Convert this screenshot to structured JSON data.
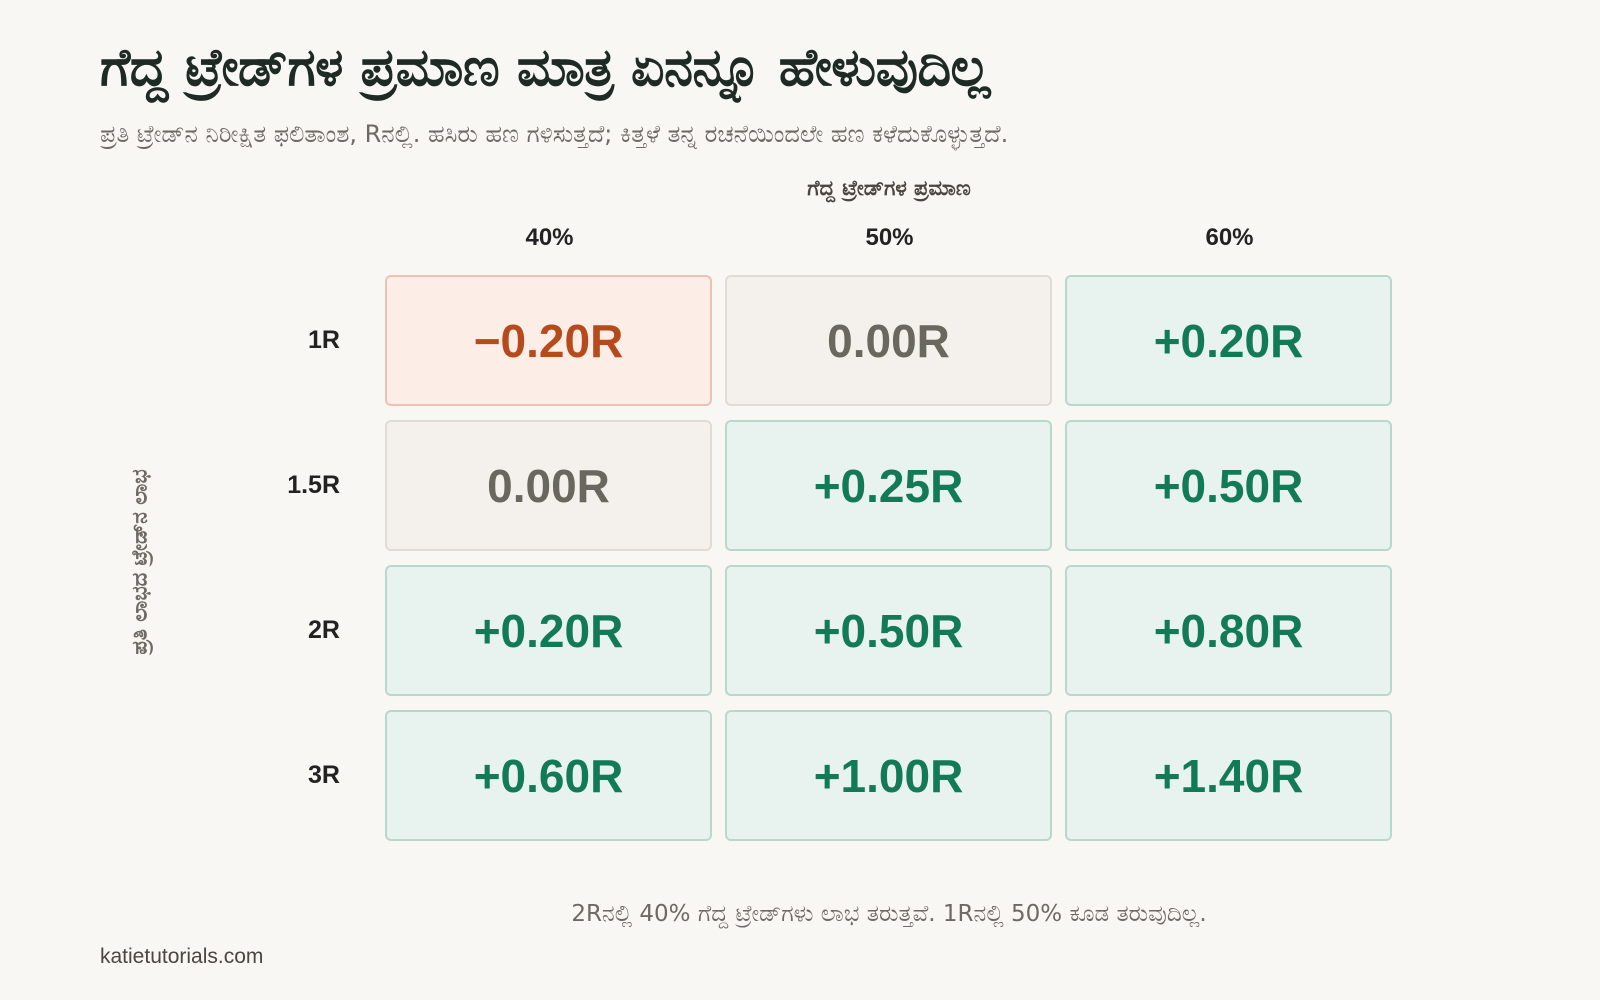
{
  "title": "ಗೆದ್ದ ಟ್ರೇಡ್‌ಗಳ ಪ್ರಮಾಣ ಮಾತ್ರ ಏನನ್ನೂ ಹೇಳುವುದಿಲ್ಲ",
  "subtitle": "ಪ್ರತಿ ಟ್ರೇಡ್‌ನ ನಿರೀಕ್ಷಿತ ಫಲಿತಾಂಶ, Rನಲ್ಲಿ. ಹಸಿರು ಹಣ ಗಳಿಸುತ್ತದೆ; ಕಿತ್ತಳೆ ತನ್ನ ರಚನೆಯಿಂದಲೇ ಹಣ ಕಳೆದುಕೊಳ್ಳುತ್ತದೆ.",
  "note": "2Rನಲ್ಲಿ 40% ಗೆದ್ದ ಟ್ರೇಡ್‌ಗಳು ಲಾಭ ತರುತ್ತವೆ. 1Rನಲ್ಲಿ 50% ಕೂಡ ತರುವುದಿಲ್ಲ.",
  "footer": "katietutorials.com",
  "colors": {
    "negative": "#b54a1c",
    "neutral": "#6b675e",
    "positive": "#137a58"
  },
  "chart_data": {
    "type": "heatmap",
    "x_axis_label": "ಗೆದ್ದ ಟ್ರೇಡ್‌ಗಳ ಪ್ರಮಾಣ",
    "y_axis_label": "ಪ್ರತಿ ಲಾಭದ ಟ್ರೇಡ್‌ನ ಲಾಭ",
    "columns": [
      "40%",
      "50%",
      "60%"
    ],
    "rows": [
      "1R",
      "1.5R",
      "2R",
      "3R"
    ],
    "values": [
      [
        -0.2,
        0.0,
        0.2
      ],
      [
        0.0,
        0.25,
        0.5
      ],
      [
        0.2,
        0.5,
        0.8
      ],
      [
        0.6,
        1.0,
        1.4
      ]
    ],
    "value_labels": [
      [
        "−0.20R",
        "0.00R",
        "+0.20R"
      ],
      [
        "0.00R",
        "+0.25R",
        "+0.50R"
      ],
      [
        "+0.20R",
        "+0.50R",
        "+0.80R"
      ],
      [
        "+0.60R",
        "+1.00R",
        "+1.40R"
      ]
    ]
  }
}
